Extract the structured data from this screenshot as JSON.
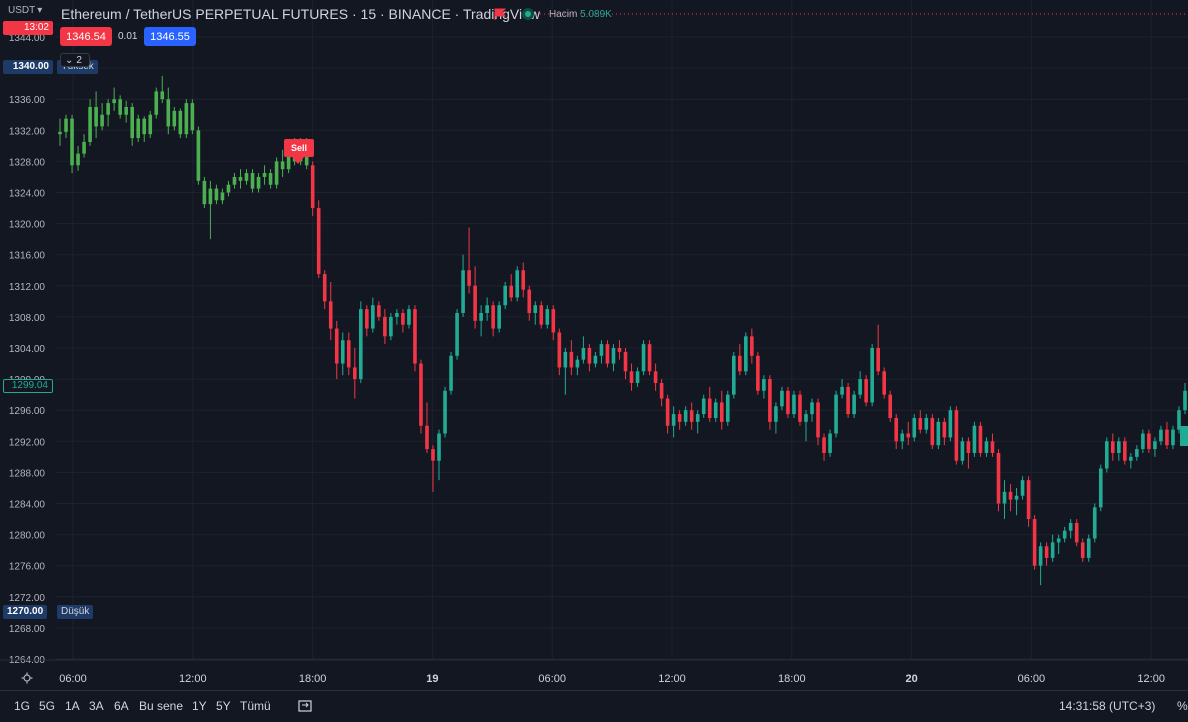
{
  "header": {
    "currency": "USDT",
    "title": "Ethereum / TetherUS PERPETUAL FUTURES · 15 · BINANCE · TradingView",
    "volume_label": "Hacim",
    "volume_value": "5.089K",
    "sell_price": "1346.54",
    "spread": "0.01",
    "buy_price": "1346.55",
    "indicators_count": "2"
  },
  "badges": {
    "timer": "13:02",
    "high_price": "1340.00",
    "high_label": "Yüksek",
    "current_price": "1299.04",
    "low_price": "1270.00",
    "low_label": "Düşük"
  },
  "signal": {
    "label": "Sell"
  },
  "colors": {
    "up": "#4caf50",
    "down": "#f23645",
    "bg": "#131722",
    "grid": "#1e222d",
    "accent": "#22ab94"
  },
  "price_axis": [
    "1344.00",
    "1340.00",
    "1336.00",
    "1332.00",
    "1328.00",
    "1324.00",
    "1320.00",
    "1316.00",
    "1312.00",
    "1308.00",
    "1304.00",
    "1300.00",
    "1296.00",
    "1292.00",
    "1288.00",
    "1284.00",
    "1280.00",
    "1276.00",
    "1272.00",
    "1268.00",
    "1264.00"
  ],
  "time_axis": [
    "06:00",
    "12:00",
    "18:00",
    "19",
    "06:00",
    "12:00",
    "18:00",
    "20",
    "06:00",
    "12:00"
  ],
  "toolbar": {
    "timeframes": [
      "1G",
      "5G",
      "1A",
      "3A",
      "6A",
      "Bu sene",
      "1Y",
      "5Y",
      "Tümü"
    ],
    "clock": "14:31:58 (UTC+3)",
    "percent": "%"
  },
  "chart_data": {
    "type": "candlestick",
    "title": "Ethereum / TetherUS PERPETUAL FUTURES · 15 · BINANCE",
    "ylim": [
      1262,
      1346
    ],
    "xlabels": [
      "06:00",
      "12:00",
      "18:00",
      "19",
      "06:00",
      "12:00",
      "18:00",
      "20",
      "06:00",
      "12:00"
    ],
    "candles_ohlc": [
      [
        1331.5,
        1333.5,
        1330.0,
        1331.8
      ],
      [
        1331.8,
        1334.0,
        1331.0,
        1333.5
      ],
      [
        1333.5,
        1334.0,
        1326.5,
        1327.5
      ],
      [
        1327.5,
        1330.0,
        1326.8,
        1329.0
      ],
      [
        1329.0,
        1331.5,
        1328.5,
        1330.5
      ],
      [
        1330.5,
        1336.0,
        1330.0,
        1335.0
      ],
      [
        1335.0,
        1337.0,
        1331.0,
        1332.5
      ],
      [
        1332.5,
        1335.5,
        1332.0,
        1334.0
      ],
      [
        1334.0,
        1336.0,
        1332.5,
        1335.5
      ],
      [
        1335.5,
        1337.5,
        1334.5,
        1336.0
      ],
      [
        1336.0,
        1336.5,
        1333.5,
        1334.0
      ],
      [
        1334.0,
        1335.8,
        1333.0,
        1335.0
      ],
      [
        1335.0,
        1335.5,
        1330.0,
        1331.0
      ],
      [
        1331.0,
        1334.0,
        1330.5,
        1333.5
      ],
      [
        1333.5,
        1333.8,
        1330.5,
        1331.5
      ],
      [
        1331.5,
        1334.5,
        1331.0,
        1334.0
      ],
      [
        1334.0,
        1337.5,
        1333.5,
        1337.0
      ],
      [
        1337.0,
        1339.0,
        1335.5,
        1336.0
      ],
      [
        1336.0,
        1337.5,
        1331.5,
        1332.5
      ],
      [
        1332.5,
        1335.0,
        1332.0,
        1334.5
      ],
      [
        1334.5,
        1334.8,
        1331.0,
        1331.5
      ],
      [
        1331.5,
        1336.0,
        1331.0,
        1335.5
      ],
      [
        1335.5,
        1336.0,
        1331.5,
        1332.0
      ],
      [
        1332.0,
        1332.5,
        1325.0,
        1325.5
      ],
      [
        1325.5,
        1326.0,
        1322.0,
        1322.5
      ],
      [
        1322.5,
        1325.5,
        1318.0,
        1324.5
      ],
      [
        1324.5,
        1325.0,
        1322.5,
        1323.0
      ],
      [
        1323.0,
        1324.5,
        1322.5,
        1324.0
      ],
      [
        1324.0,
        1325.5,
        1323.5,
        1325.0
      ],
      [
        1325.0,
        1326.5,
        1324.5,
        1326.0
      ],
      [
        1326.0,
        1327.0,
        1324.5,
        1325.5
      ],
      [
        1325.5,
        1327.0,
        1325.0,
        1326.5
      ],
      [
        1326.5,
        1327.0,
        1324.0,
        1324.5
      ],
      [
        1324.5,
        1326.5,
        1324.0,
        1326.0
      ],
      [
        1326.0,
        1327.5,
        1325.0,
        1326.5
      ],
      [
        1326.5,
        1327.0,
        1324.5,
        1325.0
      ],
      [
        1325.0,
        1328.5,
        1324.5,
        1328.0
      ],
      [
        1328.0,
        1329.5,
        1326.0,
        1327.0
      ],
      [
        1327.0,
        1330.5,
        1326.5,
        1330.0
      ],
      [
        1330.0,
        1331.0,
        1327.5,
        1328.0
      ],
      [
        1328.0,
        1331.0,
        1327.5,
        1330.5
      ],
      [
        1330.5,
        1331.0,
        1327.0,
        1327.5
      ],
      [
        1327.5,
        1328.0,
        1321.0,
        1322.0
      ],
      [
        1322.0,
        1323.0,
        1313.0,
        1313.5
      ],
      [
        1313.5,
        1314.0,
        1309.0,
        1310.0
      ],
      [
        1310.0,
        1312.5,
        1305.0,
        1306.5
      ],
      [
        1306.5,
        1307.5,
        1300.0,
        1302.0
      ],
      [
        1302.0,
        1306.0,
        1300.5,
        1305.0
      ],
      [
        1305.0,
        1306.0,
        1300.5,
        1301.5
      ],
      [
        1301.5,
        1304.0,
        1297.5,
        1300.0
      ],
      [
        1300.0,
        1310.0,
        1299.5,
        1309.0
      ],
      [
        1309.0,
        1309.5,
        1305.5,
        1306.5
      ],
      [
        1306.5,
        1310.5,
        1306.0,
        1309.5
      ],
      [
        1309.5,
        1310.0,
        1307.5,
        1308.0
      ],
      [
        1308.0,
        1309.0,
        1304.5,
        1305.5
      ],
      [
        1305.5,
        1308.5,
        1305.0,
        1308.0
      ],
      [
        1308.0,
        1309.0,
        1307.0,
        1308.5
      ],
      [
        1308.5,
        1309.0,
        1306.0,
        1307.0
      ],
      [
        1307.0,
        1309.5,
        1306.5,
        1309.0
      ],
      [
        1309.0,
        1309.5,
        1301.0,
        1302.0
      ],
      [
        1302.0,
        1302.5,
        1293.0,
        1294.0
      ],
      [
        1294.0,
        1297.0,
        1290.5,
        1291.0
      ],
      [
        1291.0,
        1291.5,
        1285.5,
        1289.5
      ],
      [
        1289.5,
        1293.5,
        1287.0,
        1293.0
      ],
      [
        1293.0,
        1299.0,
        1292.5,
        1298.5
      ],
      [
        1298.5,
        1303.5,
        1298.0,
        1303.0
      ],
      [
        1303.0,
        1309.0,
        1302.5,
        1308.5
      ],
      [
        1308.5,
        1316.0,
        1308.0,
        1314.0
      ],
      [
        1314.0,
        1319.5,
        1311.0,
        1312.0
      ],
      [
        1312.0,
        1314.5,
        1306.5,
        1307.5
      ],
      [
        1307.5,
        1309.5,
        1305.5,
        1308.5
      ],
      [
        1308.5,
        1310.5,
        1307.5,
        1309.5
      ],
      [
        1309.5,
        1310.0,
        1305.5,
        1306.5
      ],
      [
        1306.5,
        1310.0,
        1306.0,
        1309.5
      ],
      [
        1309.5,
        1312.5,
        1309.0,
        1312.0
      ],
      [
        1312.0,
        1313.5,
        1310.0,
        1310.5
      ],
      [
        1310.5,
        1314.5,
        1310.0,
        1314.0
      ],
      [
        1314.0,
        1315.0,
        1310.5,
        1311.5
      ],
      [
        1311.5,
        1312.0,
        1307.5,
        1308.5
      ],
      [
        1308.5,
        1310.0,
        1307.0,
        1309.5
      ],
      [
        1309.5,
        1310.0,
        1306.5,
        1307.0
      ],
      [
        1307.0,
        1309.5,
        1306.5,
        1309.0
      ],
      [
        1309.0,
        1309.5,
        1305.0,
        1306.0
      ],
      [
        1306.0,
        1306.5,
        1300.5,
        1301.5
      ],
      [
        1301.5,
        1304.0,
        1298.0,
        1303.5
      ],
      [
        1303.5,
        1305.0,
        1300.5,
        1301.5
      ],
      [
        1301.5,
        1303.0,
        1300.5,
        1302.5
      ],
      [
        1302.5,
        1305.5,
        1302.0,
        1304.0
      ],
      [
        1304.0,
        1304.5,
        1301.0,
        1302.0
      ],
      [
        1302.0,
        1303.5,
        1301.5,
        1303.0
      ],
      [
        1303.0,
        1305.0,
        1302.0,
        1304.5
      ],
      [
        1304.5,
        1305.0,
        1301.5,
        1302.0
      ],
      [
        1302.0,
        1304.5,
        1301.0,
        1304.0
      ],
      [
        1304.0,
        1305.0,
        1302.5,
        1303.5
      ],
      [
        1303.5,
        1304.0,
        1300.0,
        1301.0
      ],
      [
        1301.0,
        1302.0,
        1298.5,
        1299.5
      ],
      [
        1299.5,
        1301.5,
        1299.0,
        1301.0
      ],
      [
        1301.0,
        1305.0,
        1300.5,
        1304.5
      ],
      [
        1304.5,
        1305.0,
        1300.5,
        1301.0
      ],
      [
        1301.0,
        1302.0,
        1298.5,
        1299.5
      ],
      [
        1299.5,
        1300.0,
        1296.5,
        1297.5
      ],
      [
        1297.5,
        1298.0,
        1293.0,
        1294.0
      ],
      [
        1294.0,
        1296.5,
        1292.5,
        1295.5
      ],
      [
        1295.5,
        1296.0,
        1293.5,
        1294.5
      ],
      [
        1294.5,
        1296.5,
        1294.0,
        1296.0
      ],
      [
        1296.0,
        1297.0,
        1293.5,
        1294.5
      ],
      [
        1294.5,
        1296.0,
        1293.0,
        1295.5
      ],
      [
        1295.5,
        1298.0,
        1295.0,
        1297.5
      ],
      [
        1297.5,
        1299.0,
        1294.5,
        1295.0
      ],
      [
        1295.0,
        1297.5,
        1294.5,
        1297.0
      ],
      [
        1297.0,
        1298.5,
        1293.5,
        1294.5
      ],
      [
        1294.5,
        1298.5,
        1294.0,
        1298.0
      ],
      [
        1298.0,
        1303.5,
        1297.5,
        1303.0
      ],
      [
        1303.0,
        1304.5,
        1300.5,
        1301.0
      ],
      [
        1301.0,
        1306.0,
        1300.5,
        1305.5
      ],
      [
        1305.5,
        1306.5,
        1302.0,
        1303.0
      ],
      [
        1303.0,
        1303.5,
        1298.0,
        1298.5
      ],
      [
        1298.5,
        1300.5,
        1297.5,
        1300.0
      ],
      [
        1300.0,
        1300.5,
        1293.5,
        1294.5
      ],
      [
        1294.5,
        1297.0,
        1293.0,
        1296.5
      ],
      [
        1296.5,
        1299.0,
        1296.0,
        1298.5
      ],
      [
        1298.5,
        1299.0,
        1295.0,
        1295.5
      ],
      [
        1295.5,
        1298.5,
        1295.0,
        1298.0
      ],
      [
        1298.0,
        1298.5,
        1294.0,
        1294.5
      ],
      [
        1294.5,
        1296.0,
        1292.0,
        1295.5
      ],
      [
        1295.5,
        1297.5,
        1294.5,
        1297.0
      ],
      [
        1297.0,
        1297.5,
        1291.5,
        1292.5
      ],
      [
        1292.5,
        1293.0,
        1289.5,
        1290.5
      ],
      [
        1290.5,
        1293.5,
        1290.0,
        1293.0
      ],
      [
        1293.0,
        1298.5,
        1292.5,
        1298.0
      ],
      [
        1298.0,
        1300.0,
        1297.5,
        1299.0
      ],
      [
        1299.0,
        1299.5,
        1295.0,
        1295.5
      ],
      [
        1295.5,
        1298.5,
        1295.0,
        1298.0
      ],
      [
        1298.0,
        1301.0,
        1297.5,
        1300.0
      ],
      [
        1300.0,
        1300.5,
        1296.5,
        1297.0
      ],
      [
        1297.0,
        1304.5,
        1296.5,
        1304.0
      ],
      [
        1304.0,
        1307.0,
        1300.5,
        1301.0
      ],
      [
        1301.0,
        1301.5,
        1297.5,
        1298.0
      ],
      [
        1298.0,
        1298.5,
        1294.5,
        1295.0
      ],
      [
        1295.0,
        1295.5,
        1291.0,
        1292.0
      ],
      [
        1292.0,
        1293.5,
        1291.0,
        1293.0
      ],
      [
        1293.0,
        1294.5,
        1291.5,
        1292.5
      ],
      [
        1292.5,
        1295.5,
        1292.0,
        1295.0
      ],
      [
        1295.0,
        1296.0,
        1293.0,
        1293.5
      ],
      [
        1293.5,
        1295.5,
        1293.0,
        1295.0
      ],
      [
        1295.0,
        1295.5,
        1291.0,
        1291.5
      ],
      [
        1291.5,
        1295.0,
        1291.0,
        1294.5
      ],
      [
        1294.5,
        1295.0,
        1291.5,
        1292.5
      ],
      [
        1292.5,
        1296.5,
        1292.0,
        1296.0
      ],
      [
        1296.0,
        1296.5,
        1289.0,
        1289.5
      ],
      [
        1289.5,
        1292.5,
        1289.0,
        1292.0
      ],
      [
        1292.0,
        1292.5,
        1288.5,
        1290.5
      ],
      [
        1290.5,
        1294.5,
        1290.0,
        1294.0
      ],
      [
        1294.0,
        1294.5,
        1290.0,
        1290.5
      ],
      [
        1290.5,
        1292.5,
        1290.0,
        1292.0
      ],
      [
        1292.0,
        1293.0,
        1290.0,
        1290.5
      ],
      [
        1290.5,
        1291.0,
        1283.0,
        1284.0
      ],
      [
        1284.0,
        1287.0,
        1282.0,
        1285.5
      ],
      [
        1285.5,
        1286.5,
        1283.0,
        1284.5
      ],
      [
        1284.5,
        1286.0,
        1282.5,
        1285.0
      ],
      [
        1285.0,
        1287.5,
        1284.5,
        1287.0
      ],
      [
        1287.0,
        1287.5,
        1281.0,
        1282.0
      ],
      [
        1282.0,
        1282.5,
        1275.5,
        1276.0
      ],
      [
        1276.0,
        1279.0,
        1273.5,
        1278.5
      ],
      [
        1278.5,
        1279.0,
        1276.0,
        1277.0
      ],
      [
        1277.0,
        1280.0,
        1276.5,
        1279.0
      ],
      [
        1279.0,
        1280.0,
        1277.5,
        1279.5
      ],
      [
        1279.5,
        1281.0,
        1279.0,
        1280.5
      ],
      [
        1280.5,
        1282.0,
        1279.5,
        1281.5
      ],
      [
        1281.5,
        1282.0,
        1278.5,
        1279.0
      ],
      [
        1279.0,
        1279.5,
        1276.5,
        1277.0
      ],
      [
        1277.0,
        1280.0,
        1276.5,
        1279.5
      ],
      [
        1279.5,
        1284.0,
        1279.0,
        1283.5
      ],
      [
        1283.5,
        1289.0,
        1283.0,
        1288.5
      ],
      [
        1288.5,
        1292.5,
        1288.0,
        1292.0
      ],
      [
        1292.0,
        1293.0,
        1289.5,
        1290.5
      ],
      [
        1290.5,
        1292.5,
        1289.5,
        1292.0
      ],
      [
        1292.0,
        1292.5,
        1289.0,
        1289.5
      ],
      [
        1289.5,
        1290.5,
        1288.5,
        1290.0
      ],
      [
        1290.0,
        1291.5,
        1289.5,
        1291.0
      ],
      [
        1291.0,
        1293.5,
        1290.5,
        1293.0
      ],
      [
        1293.0,
        1293.5,
        1290.5,
        1291.0
      ],
      [
        1291.0,
        1292.5,
        1290.0,
        1292.0
      ],
      [
        1292.0,
        1294.0,
        1291.5,
        1293.5
      ],
      [
        1293.5,
        1294.5,
        1291.0,
        1291.5
      ],
      [
        1291.5,
        1294.0,
        1291.0,
        1293.5
      ],
      [
        1293.5,
        1296.5,
        1293.0,
        1296.0
      ],
      [
        1296.0,
        1299.5,
        1295.5,
        1298.5
      ]
    ]
  }
}
